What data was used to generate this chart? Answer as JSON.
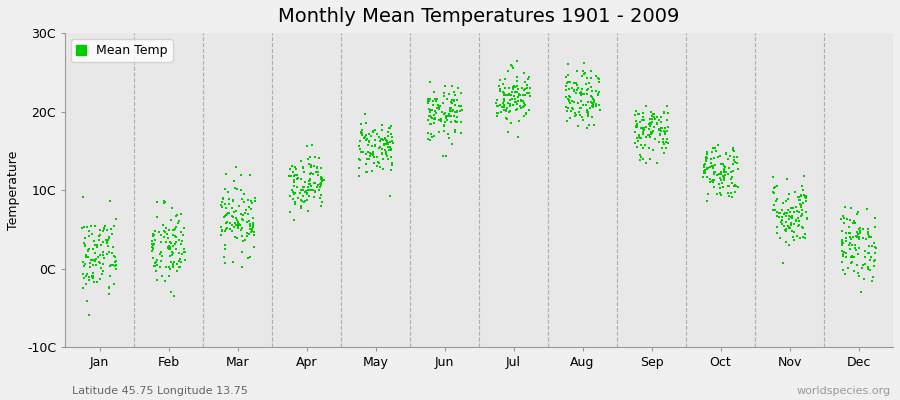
{
  "title": "Monthly Mean Temperatures 1901 - 2009",
  "ylabel": "Temperature",
  "subtitle": "Latitude 45.75 Longitude 13.75",
  "watermark": "worldspecies.org",
  "legend_label": "Mean Temp",
  "ylim": [
    -10,
    30
  ],
  "yticks": [
    -10,
    0,
    10,
    20,
    30
  ],
  "ytick_labels": [
    "-10C",
    "0C",
    "10C",
    "20C",
    "30C"
  ],
  "months": [
    "Jan",
    "Feb",
    "Mar",
    "Apr",
    "May",
    "Jun",
    "Jul",
    "Aug",
    "Sep",
    "Oct",
    "Nov",
    "Dec"
  ],
  "month_mean_temps": [
    1.5,
    2.5,
    6.5,
    11.0,
    15.5,
    19.5,
    22.0,
    21.5,
    17.5,
    12.5,
    7.0,
    3.0
  ],
  "month_std_temps": [
    2.8,
    2.8,
    2.3,
    1.8,
    1.8,
    1.8,
    1.8,
    1.8,
    1.8,
    1.8,
    2.2,
    2.3
  ],
  "n_years": 109,
  "random_seed": 42,
  "dot_color": "#00cc00",
  "dot_size": 2.5,
  "bg_color": "#f0f0f0",
  "plot_bg_color": "#e8e8e8",
  "grid_color": "#888888",
  "title_fontsize": 14,
  "axis_label_fontsize": 9,
  "tick_fontsize": 9,
  "legend_fontsize": 9,
  "subtitle_fontsize": 8,
  "watermark_fontsize": 8
}
